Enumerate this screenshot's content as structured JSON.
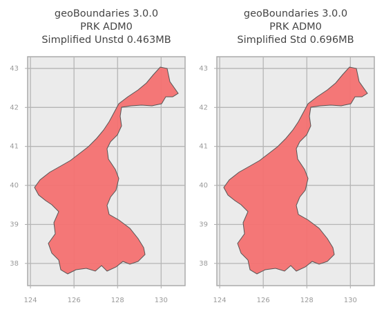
{
  "chart_data": [
    {
      "type": "map",
      "title": [
        "geoBoundaries 3.0.0",
        "PRK ADM0",
        "Simplified Unstd 0.463MB"
      ],
      "xlim": [
        123.87,
        131.1
      ],
      "ylim": [
        37.43,
        43.3
      ],
      "xticks": [
        124,
        126,
        128,
        130
      ],
      "yticks": [
        38,
        39,
        40,
        41,
        42,
        43
      ],
      "grid": true,
      "color": "#f47171"
    },
    {
      "type": "map",
      "title": [
        "geoBoundaries 3.0.0",
        "PRK ADM0",
        "Simplified Std 0.696MB"
      ],
      "xlim": [
        123.87,
        131.1
      ],
      "ylim": [
        37.43,
        43.3
      ],
      "xticks": [
        124,
        126,
        128,
        130
      ],
      "yticks": [
        38,
        39,
        40,
        41,
        42,
        43
      ],
      "grid": true,
      "color": "#f47171"
    }
  ]
}
